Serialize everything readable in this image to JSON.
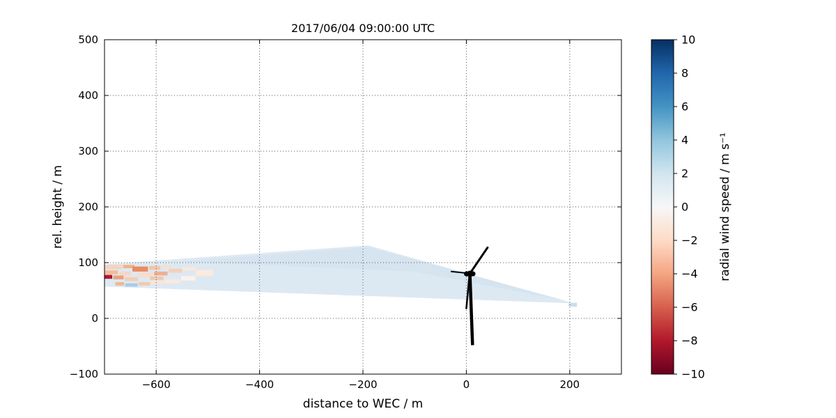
{
  "chart_data": {
    "type": "heatmap",
    "title": "2017/06/04 09:00:00 UTC",
    "xlabel": "distance to WEC / m",
    "ylabel": "rel. height / m",
    "xlim": [
      -700,
      300
    ],
    "ylim": [
      -100,
      500
    ],
    "grid": "dotted",
    "xticks": [
      {
        "v": -600,
        "label": "−600"
      },
      {
        "v": -400,
        "label": "−400"
      },
      {
        "v": -200,
        "label": "−200"
      },
      {
        "v": 0,
        "label": "0"
      },
      {
        "v": 200,
        "label": "200"
      }
    ],
    "yticks": [
      {
        "v": -100,
        "label": "−100"
      },
      {
        "v": 0,
        "label": "0"
      },
      {
        "v": 100,
        "label": "100"
      },
      {
        "v": 200,
        "label": "200"
      },
      {
        "v": 300,
        "label": "300"
      },
      {
        "v": 400,
        "label": "400"
      },
      {
        "v": 500,
        "label": "500"
      }
    ],
    "colorbar": {
      "label": "radial wind speed / m s⁻¹",
      "min": -10,
      "max": 10,
      "ticks": [
        {
          "v": 10,
          "label": "10"
        },
        {
          "v": 8,
          "label": "8"
        },
        {
          "v": 6,
          "label": "6"
        },
        {
          "v": 4,
          "label": "4"
        },
        {
          "v": 2,
          "label": "2"
        },
        {
          "v": 0,
          "label": "0"
        },
        {
          "v": -2,
          "label": "−2"
        },
        {
          "v": -4,
          "label": "−4"
        },
        {
          "v": -6,
          "label": "−6"
        },
        {
          "v": -8,
          "label": "−8"
        },
        {
          "v": -10,
          "label": "−10"
        }
      ],
      "colormap": [
        {
          "value": 10,
          "color": "#053061"
        },
        {
          "value": 8,
          "color": "#2166ac"
        },
        {
          "value": 6,
          "color": "#4393c3"
        },
        {
          "value": 4,
          "color": "#92c5de"
        },
        {
          "value": 2,
          "color": "#d1e5f0"
        },
        {
          "value": 0,
          "color": "#f7f7f7"
        },
        {
          "value": -2,
          "color": "#fddbc7"
        },
        {
          "value": -4,
          "color": "#f4a582"
        },
        {
          "value": -6,
          "color": "#d6604d"
        },
        {
          "value": -8,
          "color": "#b2182b"
        },
        {
          "value": -10,
          "color": "#67001f"
        }
      ]
    },
    "scan": {
      "description": "lidar scan wedge, mean value ~ +1.5 m/s",
      "fill_color": "#dde9f2",
      "outline": [
        [
          206,
          27
        ],
        [
          -190,
          131
        ],
        [
          -700,
          97
        ],
        [
          -700,
          57
        ]
      ],
      "inner_color": "#d2e2ee",
      "inner_outline": [
        [
          200,
          30
        ],
        [
          -190,
          128
        ],
        [
          -560,
          102
        ],
        [
          -100,
          84
        ]
      ],
      "patches": [
        {
          "x": -700,
          "y": 88,
          "w": 34,
          "h": 8,
          "color": "#f6d3bf"
        },
        {
          "x": -664,
          "y": 90,
          "w": 22,
          "h": 6,
          "color": "#f0b28c"
        },
        {
          "x": -646,
          "y": 84,
          "w": 30,
          "h": 9,
          "color": "#ea8a60"
        },
        {
          "x": -614,
          "y": 87,
          "w": 22,
          "h": 7,
          "color": "#f4c4a6"
        },
        {
          "x": -590,
          "y": 90,
          "w": 20,
          "h": 5,
          "color": "#f9ded0"
        },
        {
          "x": -700,
          "y": 79,
          "w": 26,
          "h": 7,
          "color": "#f2bb98"
        },
        {
          "x": -700,
          "y": 71,
          "w": 15,
          "h": 7,
          "color": "#b2182b"
        },
        {
          "x": -683,
          "y": 70,
          "w": 20,
          "h": 7,
          "color": "#eda279"
        },
        {
          "x": -661,
          "y": 67,
          "w": 26,
          "h": 7,
          "color": "#f6cdb4"
        },
        {
          "x": -700,
          "y": 60,
          "w": 18,
          "h": 8,
          "color": "#dcebf4"
        },
        {
          "x": -679,
          "y": 59,
          "w": 17,
          "h": 6,
          "color": "#f1b694"
        },
        {
          "x": -660,
          "y": 57,
          "w": 24,
          "h": 6,
          "color": "#a8cce4"
        },
        {
          "x": -634,
          "y": 59,
          "w": 22,
          "h": 6,
          "color": "#f5c9ad"
        },
        {
          "x": -610,
          "y": 61,
          "w": 24,
          "h": 6,
          "color": "#fae4d8"
        },
        {
          "x": -671,
          "y": 77,
          "w": 22,
          "h": 7,
          "color": "#f7d6c4"
        },
        {
          "x": -636,
          "y": 74,
          "w": 30,
          "h": 8,
          "color": "#f9dccc"
        },
        {
          "x": -604,
          "y": 77,
          "w": 26,
          "h": 7,
          "color": "#f0b091"
        },
        {
          "x": -576,
          "y": 82,
          "w": 26,
          "h": 7,
          "color": "#f6cfbc"
        },
        {
          "x": -549,
          "y": 86,
          "w": 25,
          "h": 6,
          "color": "#fae7dc"
        },
        {
          "x": -584,
          "y": 63,
          "w": 30,
          "h": 7,
          "color": "#fbe9de"
        },
        {
          "x": -612,
          "y": 69,
          "w": 26,
          "h": 6,
          "color": "#f5c6a9"
        },
        {
          "x": -552,
          "y": 68,
          "w": 28,
          "h": 8,
          "color": "#fdf1ea"
        },
        {
          "x": -524,
          "y": 76,
          "w": 34,
          "h": 11,
          "color": "#fbeade"
        },
        {
          "x": 198,
          "y": 21,
          "w": 16,
          "h": 7,
          "color": "#c9deee"
        }
      ]
    },
    "turbine": {
      "tower": {
        "bottom": [
          12,
          -48
        ],
        "top": [
          7,
          77
        ],
        "width": 4.5
      },
      "nacelle": {
        "from": [
          0,
          80
        ],
        "to": [
          13,
          80
        ],
        "width": 7
      },
      "hub": [
        7,
        80
      ],
      "blades": [
        {
          "from": [
            8,
            82
          ],
          "to": [
            41,
            127
          ],
          "width": 3
        },
        {
          "from": [
            6,
            78
          ],
          "to": [
            0,
            18
          ],
          "width": 2.5
        },
        {
          "from": [
            4,
            81
          ],
          "to": [
            -29,
            84
          ],
          "width": 2
        }
      ]
    }
  }
}
